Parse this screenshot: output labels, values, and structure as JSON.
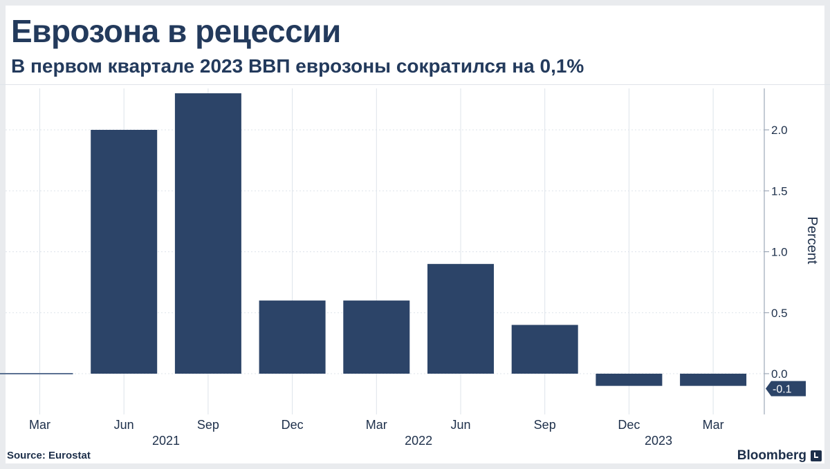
{
  "header": {
    "title": "Еврозона в рецессии",
    "subtitle": "В первом квартале 2023 ВВП еврозоны сократился на 0,1%"
  },
  "footer": {
    "source": "Source:  Eurostat",
    "brand": "Bloomberg"
  },
  "colors": {
    "bar": "#2c4468",
    "grid": "#dde3ea",
    "text": "#1d2f4a",
    "callout": "#2c4468"
  },
  "chart_data": {
    "type": "bar",
    "title": "Еврозона в рецессии",
    "subtitle": "В первом квартале 2023 ВВП еврозоны сократился на 0,1%",
    "categories": [
      "Mar",
      "Jun",
      "Sep",
      "Dec",
      "Mar",
      "Jun",
      "Sep",
      "Dec",
      "Mar"
    ],
    "years": [
      {
        "label": "2021",
        "under": 2
      },
      {
        "label": "2022",
        "under": 5
      },
      {
        "label": "2023",
        "under": 8
      }
    ],
    "values": [
      0.0,
      2.0,
      2.3,
      0.6,
      0.6,
      0.9,
      0.4,
      -0.1,
      -0.1
    ],
    "ylabel": "Percent",
    "yticks": [
      "2.0",
      "1.5",
      "1.0",
      "0.5",
      "0.0"
    ],
    "ylim": [
      -0.33,
      2.33
    ],
    "grid": true,
    "y_axis_side": "right",
    "last_value_label": "-0.1",
    "source": "Eurostat"
  }
}
